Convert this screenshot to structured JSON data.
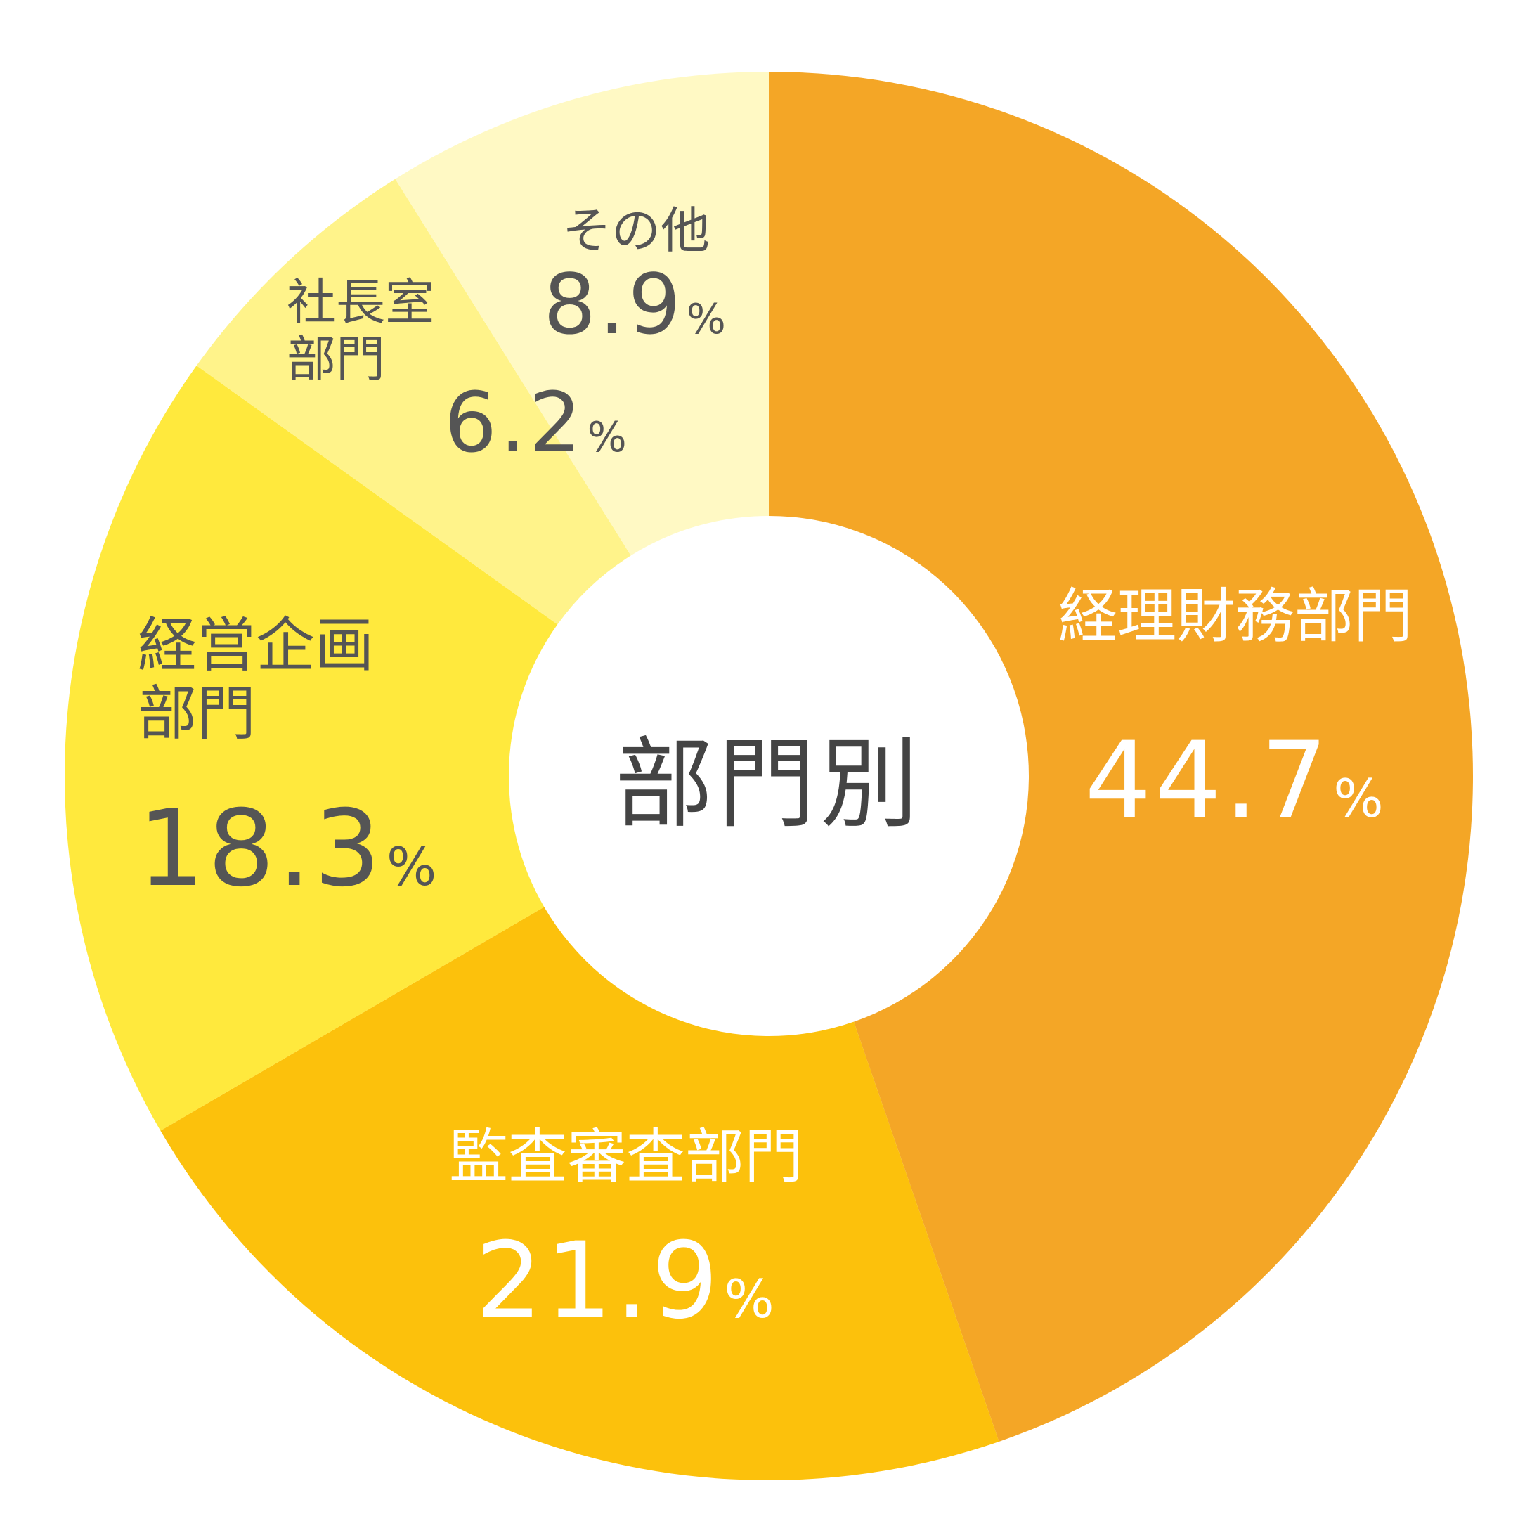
{
  "chart_data": {
    "type": "donut",
    "title": "部門別",
    "categories": [
      "経理財務部門",
      "監査審査部門",
      "経営企画部門",
      "社長室部門",
      "その他"
    ],
    "values": [
      44.7,
      21.9,
      18.3,
      6.2,
      8.9
    ],
    "unit": "%",
    "colors": [
      "#f4a626",
      "#fcc10c",
      "#ffe93d",
      "#fff38a",
      "#fff9c4"
    ]
  }
}
